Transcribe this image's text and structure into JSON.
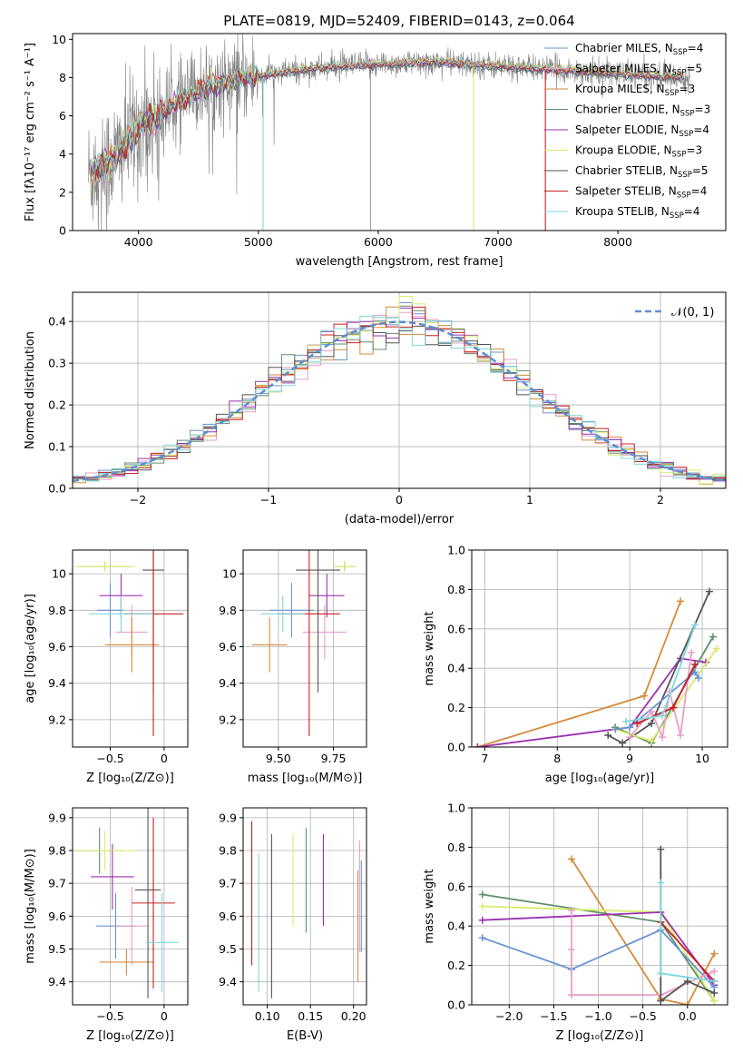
{
  "figure": {
    "title": "PLATE=0819, MJD=52409, FIBERID=0143, z=0.064",
    "colors": {
      "Chabrier MILES": "#6a93d4",
      "Salpeter MILES": "#e8a0c8",
      "Kroupa MILES": "#d68a3a",
      "Chabrier ELODIE": "#5f8f6a",
      "Salpeter ELODIE": "#9b30b0",
      "Kroupa ELODIE": "#d8ec6a",
      "Chabrier STELIB": "#555555",
      "Salpeter STELIB": "#c82020",
      "Kroupa STELIB": "#7ed8dc"
    },
    "data_gray": "#808080"
  },
  "chart_data": [
    {
      "id": "spectrum",
      "type": "line",
      "xlabel": "wavelength [Angstrom, rest frame]",
      "ylabel": "Flux [fλ10⁻¹⁷ erg cm⁻² s⁻¹ A⁻¹]",
      "xlim": [
        3450,
        8900
      ],
      "ylim": [
        0,
        10.3
      ],
      "xticks": [
        4000,
        5000,
        6000,
        7000,
        8000
      ],
      "yticks": [
        0,
        2,
        4,
        6,
        8,
        10
      ],
      "continuum": {
        "x": [
          3600,
          3800,
          4000,
          4300,
          4600,
          5000,
          5500,
          6000,
          6500,
          7000,
          7500,
          8000,
          8500,
          8600
        ],
        "y": [
          3.0,
          3.8,
          5.4,
          6.6,
          7.6,
          8.1,
          8.5,
          8.7,
          8.8,
          8.6,
          8.4,
          8.2,
          8.0,
          8.0
        ]
      },
      "features": [
        {
          "x": 5040,
          "depth": 8.9
        },
        {
          "x": 5935,
          "depth": 8.1
        },
        {
          "x": 6795,
          "depth": 8.6
        },
        {
          "x": 7395,
          "depth": 8.3
        }
      ],
      "legend": [
        {
          "label": "Chabrier MILES, N",
          "sub": "SSP",
          "suffix": "=4",
          "color": "#6a93d4"
        },
        {
          "label": "Salpeter MILES, N",
          "sub": "SSP",
          "suffix": "=5",
          "color": "#e8a0c8"
        },
        {
          "label": "Kroupa MILES, N",
          "sub": "SSP",
          "suffix": "=3",
          "color": "#d68a3a"
        },
        {
          "label": "Chabrier ELODIE, N",
          "sub": "SSP",
          "suffix": "=3",
          "color": "#5f8f6a"
        },
        {
          "label": "Salpeter ELODIE, N",
          "sub": "SSP",
          "suffix": "=4",
          "color": "#9b30b0"
        },
        {
          "label": "Kroupa ELODIE, N",
          "sub": "SSP",
          "suffix": "=3",
          "color": "#d8ec6a"
        },
        {
          "label": "Chabrier STELIB, N",
          "sub": "SSP",
          "suffix": "=5",
          "color": "#555555"
        },
        {
          "label": "Salpeter STELIB, N",
          "sub": "SSP",
          "suffix": "=4",
          "color": "#c82020"
        },
        {
          "label": "Kroupa STELIB, N",
          "sub": "SSP",
          "suffix": "=4",
          "color": "#7ed8dc"
        }
      ]
    },
    {
      "id": "residuals",
      "type": "bar",
      "xlabel": "(data-model)/error",
      "ylabel": "Normed distribution",
      "xlim": [
        -2.5,
        2.5
      ],
      "ylim": [
        0,
        0.47
      ],
      "xticks": [
        -2,
        -1,
        0,
        1,
        2
      ],
      "yticks": [
        0.0,
        0.1,
        0.2,
        0.3,
        0.4
      ],
      "bin_width": 0.1,
      "legend": "𝒩(0, 1)",
      "normal_color": "#5b8ed6"
    },
    {
      "id": "age-z",
      "type": "scatter",
      "xlabel": "Z [log₁₀(Z/Z⊙)]",
      "ylabel": "age  [log₁₀(age/yr)]",
      "xlim": [
        -0.85,
        0.22
      ],
      "ylim": [
        9.05,
        10.13
      ],
      "xticks": [
        -0.5,
        0.0
      ],
      "yticks": [
        9.2,
        9.4,
        9.6,
        9.8,
        10.0
      ],
      "points": [
        {
          "model": "Chabrier MILES",
          "x": -0.5,
          "xerr": 0.12,
          "y": 9.8,
          "yerr": 0.15
        },
        {
          "model": "Salpeter MILES",
          "x": -0.3,
          "xerr": 0.15,
          "y": 9.68,
          "yerr": 0.15
        },
        {
          "model": "Kroupa MILES",
          "x": -0.3,
          "xerr": 0.25,
          "y": 9.61,
          "yerr": 0.15
        },
        {
          "model": "Chabrier ELODIE",
          "x": -0.55,
          "xerr": 0.25,
          "y": 10.04,
          "yerr": 0.02
        },
        {
          "model": "Salpeter ELODIE",
          "x": -0.4,
          "xerr": 0.2,
          "y": 9.88,
          "yerr": 0.12
        },
        {
          "model": "Kroupa ELODIE",
          "x": -0.55,
          "xerr": 0.28,
          "y": 10.04,
          "yerr": 0.03
        },
        {
          "model": "Chabrier STELIB",
          "x": -0.1,
          "xerr": 0.1,
          "y": 10.02,
          "yerr": 0.67
        },
        {
          "model": "Salpeter STELIB",
          "x": -0.1,
          "xerr": 0.28,
          "y": 9.78,
          "yerr": 0.67
        },
        {
          "model": "Kroupa STELIB",
          "x": -0.4,
          "xerr": 0.3,
          "y": 9.78,
          "yerr": 0.1
        }
      ]
    },
    {
      "id": "age-mass",
      "type": "scatter",
      "xlabel": "mass [log₁₀(M/M⊙)]",
      "ylabel": "",
      "xlim": [
        9.34,
        9.9
      ],
      "ylim": [
        9.05,
        10.13
      ],
      "xticks": [
        9.5,
        9.75
      ],
      "xtick_labels": [
        "9.50",
        "9.75"
      ],
      "yticks": [
        9.2,
        9.4,
        9.6,
        9.8,
        10.0
      ],
      "points": [
        {
          "model": "Chabrier MILES",
          "x": 9.56,
          "xerr": 0.1,
          "y": 9.8,
          "yerr": 0.15
        },
        {
          "model": "Salpeter MILES",
          "x": 9.71,
          "xerr": 0.1,
          "y": 9.68,
          "yerr": 0.15
        },
        {
          "model": "Kroupa MILES",
          "x": 9.46,
          "xerr": 0.08,
          "y": 9.61,
          "yerr": 0.15
        },
        {
          "model": "Chabrier ELODIE",
          "x": 9.8,
          "xerr": 0.05,
          "y": 10.04,
          "yerr": 0.02
        },
        {
          "model": "Salpeter ELODIE",
          "x": 9.72,
          "xerr": 0.08,
          "y": 9.88,
          "yerr": 0.12
        },
        {
          "model": "Kroupa ELODIE",
          "x": 9.8,
          "xerr": 0.05,
          "y": 10.04,
          "yerr": 0.03
        },
        {
          "model": "Chabrier STELIB",
          "x": 9.68,
          "xerr": 0.1,
          "y": 10.02,
          "yerr": 0.67
        },
        {
          "model": "Salpeter STELIB",
          "x": 9.64,
          "xerr": 0.14,
          "y": 9.78,
          "yerr": 0.67
        },
        {
          "model": "Kroupa STELIB",
          "x": 9.52,
          "xerr": 0.1,
          "y": 9.78,
          "yerr": 0.1
        }
      ]
    },
    {
      "id": "weight-age",
      "type": "line",
      "xlabel": "age  [log₁₀(age/yr)]",
      "ylabel": "mass weight",
      "xlim": [
        6.82,
        10.35
      ],
      "ylim": [
        0,
        1.0
      ],
      "xticks": [
        7,
        8,
        9,
        10
      ],
      "yticks": [
        0.0,
        0.2,
        0.4,
        0.6,
        0.8,
        1.0
      ],
      "series": [
        {
          "model": "Kroupa MILES",
          "x": [
            6.9,
            9.2,
            9.7
          ],
          "y": [
            0.0,
            0.26,
            0.74
          ]
        },
        {
          "model": "Salpeter ELODIE",
          "x": [
            6.9,
            9.0,
            9.7,
            10.05
          ],
          "y": [
            0.0,
            0.1,
            0.45,
            0.43
          ]
        },
        {
          "model": "Chabrier STELIB",
          "x": [
            8.7,
            8.9,
            9.3,
            10.1
          ],
          "y": [
            0.06,
            0.02,
            0.12,
            0.79
          ]
        },
        {
          "model": "Chabrier ELODIE",
          "x": [
            8.8,
            9.3,
            10.15
          ],
          "y": [
            0.1,
            0.02,
            0.56
          ]
        },
        {
          "model": "Kroupa ELODIE",
          "x": [
            8.8,
            9.3,
            10.2
          ],
          "y": [
            0.09,
            0.03,
            0.5
          ]
        },
        {
          "model": "Chabrier MILES",
          "x": [
            8.8,
            9.0,
            9.9,
            9.95
          ],
          "y": [
            0.09,
            0.1,
            0.38,
            0.35
          ]
        },
        {
          "model": "Salpeter MILES",
          "x": [
            9.0,
            9.3,
            9.45,
            9.55,
            9.7,
            9.85
          ],
          "y": [
            0.05,
            0.18,
            0.05,
            0.28,
            0.06,
            0.48
          ]
        },
        {
          "model": "Salpeter STELIB",
          "x": [
            9.1,
            9.6,
            9.9
          ],
          "y": [
            0.12,
            0.2,
            0.42
          ]
        },
        {
          "model": "Kroupa STELIB",
          "x": [
            8.95,
            9.45,
            9.9
          ],
          "y": [
            0.13,
            0.16,
            0.62
          ]
        }
      ]
    },
    {
      "id": "mass-z",
      "type": "scatter",
      "xlabel": "Z [log₁₀(Z/Z⊙)]",
      "ylabel": "mass [log₁₀(M/M⊙)]",
      "xlim": [
        -0.85,
        0.22
      ],
      "ylim": [
        9.33,
        9.93
      ],
      "xticks": [
        -0.5,
        0.0
      ],
      "yticks": [
        9.4,
        9.5,
        9.6,
        9.7,
        9.8,
        9.9
      ],
      "points": [
        {
          "model": "Chabrier MILES",
          "x": -0.45,
          "xerr": 0.18,
          "y": 9.57,
          "yerr": 0.1
        },
        {
          "model": "Salpeter MILES",
          "x": -0.3,
          "xerr": 0.15,
          "y": 9.57,
          "yerr": 0.12
        },
        {
          "model": "Kroupa MILES",
          "x": -0.35,
          "xerr": 0.25,
          "y": 9.46,
          "yerr": 0.04
        },
        {
          "model": "Chabrier ELODIE",
          "x": -0.6,
          "xerr": 0.22,
          "y": 9.8,
          "yerr": 0.07
        },
        {
          "model": "Salpeter ELODIE",
          "x": -0.48,
          "xerr": 0.2,
          "y": 9.72,
          "yerr": 0.1
        },
        {
          "model": "Kroupa ELODIE",
          "x": -0.55,
          "xerr": 0.28,
          "y": 9.8,
          "yerr": 0.06
        },
        {
          "model": "Chabrier STELIB",
          "x": -0.15,
          "xerr": 0.12,
          "y": 9.68,
          "yerr": 0.33
        },
        {
          "model": "Salpeter STELIB",
          "x": -0.1,
          "xerr": 0.2,
          "y": 9.64,
          "yerr": 0.26
        },
        {
          "model": "Kroupa STELIB",
          "x": -0.02,
          "xerr": 0.15,
          "y": 9.52,
          "yerr": 0.15
        }
      ]
    },
    {
      "id": "mass-ebv",
      "type": "scatter",
      "xlabel": "E(B-V)",
      "ylabel": "",
      "xlim": [
        0.072,
        0.215
      ],
      "ylim": [
        9.33,
        9.93
      ],
      "xticks": [
        0.1,
        0.15,
        0.2
      ],
      "xtick_labels": [
        "0.10",
        "0.15",
        "0.20"
      ],
      "yticks": [
        9.4,
        9.5,
        9.6,
        9.7,
        9.8,
        9.9
      ],
      "points": [
        {
          "model": "Salpeter STELIB",
          "x": 0.082,
          "y": 9.67,
          "yerr": 0.22
        },
        {
          "model": "Kroupa STELIB",
          "x": 0.09,
          "y": 9.58,
          "yerr": 0.21
        },
        {
          "model": "Chabrier STELIB",
          "x": 0.105,
          "y": 9.6,
          "yerr": 0.25
        },
        {
          "model": "Kroupa ELODIE",
          "x": 0.13,
          "y": 9.71,
          "yerr": 0.14
        },
        {
          "model": "Chabrier ELODIE",
          "x": 0.145,
          "y": 9.71,
          "yerr": 0.16
        },
        {
          "model": "Salpeter ELODIE",
          "x": 0.165,
          "y": 9.71,
          "yerr": 0.14
        },
        {
          "model": "Kroupa MILES",
          "x": 0.205,
          "y": 9.57,
          "yerr": 0.17
        },
        {
          "model": "Salpeter MILES",
          "x": 0.207,
          "y": 9.66,
          "yerr": 0.17
        },
        {
          "model": "Chabrier MILES",
          "x": 0.209,
          "y": 9.63,
          "yerr": 0.14
        }
      ]
    },
    {
      "id": "weight-z",
      "type": "line",
      "xlabel": "Z [log₁₀(Z/Z⊙)]",
      "ylabel": "mass weight",
      "xlim": [
        -2.42,
        0.45
      ],
      "ylim": [
        0,
        1.0
      ],
      "xticks": [
        -2.0,
        -1.5,
        -1.0,
        -0.5,
        0.0
      ],
      "xtick_labels": [
        "−2.0",
        "−1.5",
        "−1.0",
        "−0.5",
        "0.0"
      ],
      "yticks": [
        0.0,
        0.2,
        0.4,
        0.6,
        0.8,
        1.0
      ],
      "series": [
        {
          "model": "Kroupa MILES",
          "x": [
            -1.3,
            -0.3,
            0.0,
            0.3
          ],
          "y": [
            0.74,
            0.03,
            0.0,
            0.26
          ]
        },
        {
          "model": "Chabrier ELODIE",
          "x": [
            -2.3,
            -0.3,
            0.3
          ],
          "y": [
            0.56,
            0.42,
            0.02
          ]
        },
        {
          "model": "Kroupa ELODIE",
          "x": [
            -2.3,
            -0.3,
            0.3
          ],
          "y": [
            0.5,
            0.47,
            0.02
          ]
        },
        {
          "model": "Salpeter ELODIE",
          "x": [
            -2.3,
            -0.3,
            0.3
          ],
          "y": [
            0.43,
            0.47,
            0.1
          ]
        },
        {
          "model": "Chabrier MILES",
          "x": [
            -2.3,
            -1.3,
            -0.3,
            0.3
          ],
          "y": [
            0.34,
            0.18,
            0.38,
            0.09
          ]
        },
        {
          "model": "Salpeter MILES",
          "x": [
            -1.3,
            -1.3,
            -1.3,
            -0.3,
            0.3
          ],
          "y": [
            0.48,
            0.28,
            0.05,
            0.05,
            0.17
          ]
        },
        {
          "model": "Chabrier STELIB",
          "x": [
            -0.3,
            -0.3,
            0.0,
            0.3
          ],
          "y": [
            0.79,
            0.02,
            0.12,
            0.06
          ]
        },
        {
          "model": "Salpeter STELIB",
          "x": [
            -0.3,
            0.3
          ],
          "y": [
            0.42,
            0.12
          ]
        },
        {
          "model": "Kroupa STELIB",
          "x": [
            -0.3,
            -0.3,
            0.3
          ],
          "y": [
            0.62,
            0.16,
            0.12
          ]
        }
      ]
    }
  ]
}
